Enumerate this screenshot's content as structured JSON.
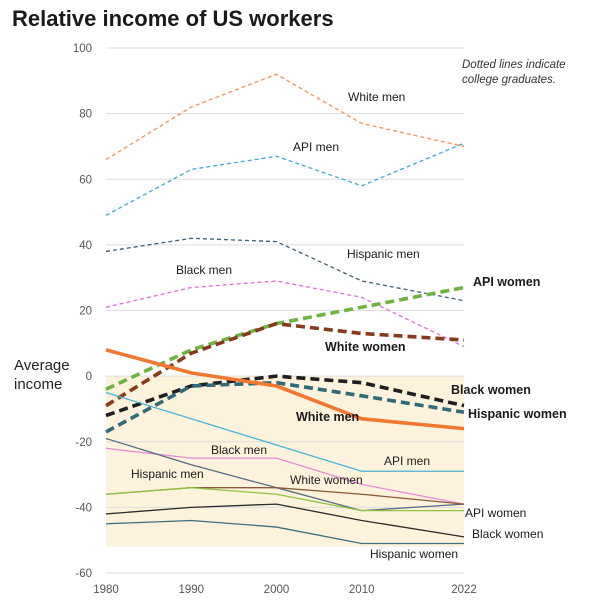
{
  "chart_data": {
    "type": "line",
    "title": "Relative income of US workers",
    "note": "Dotted lines indicate college graduates.",
    "ylabel": "Average income",
    "x": [
      1980,
      1990,
      2000,
      2010,
      2022
    ],
    "x_tick_labels": [
      "1980",
      "1990",
      "2000",
      "2010",
      "2022"
    ],
    "ylim": [
      -60,
      100
    ],
    "y_ticks": [
      -60,
      -40,
      -20,
      0,
      20,
      40,
      60,
      80,
      100
    ],
    "y_tick_labels": [
      "-60",
      "-40",
      "-20",
      "0",
      "20",
      "40",
      "60",
      "80",
      "100"
    ],
    "shaded_region": {
      "from": -52,
      "to": 0,
      "color": "#fdf3dc"
    },
    "series": [
      {
        "name": "White men",
        "group": "college",
        "values": [
          66,
          82,
          92,
          77,
          70
        ],
        "color": "#f0925a",
        "style": "dashed",
        "weight": "thin",
        "label_bold": false
      },
      {
        "name": "API men",
        "group": "college",
        "values": [
          49,
          63,
          67,
          58,
          71
        ],
        "color": "#3aa7d6",
        "style": "dashed",
        "weight": "thin",
        "label_bold": false
      },
      {
        "name": "Hispanic men",
        "group": "college",
        "values": [
          38,
          42,
          41,
          29,
          23
        ],
        "color": "#3d5f7a",
        "style": "dashed",
        "weight": "thin",
        "label_bold": false
      },
      {
        "name": "Black men",
        "group": "college",
        "values": [
          21,
          27,
          29,
          24,
          9
        ],
        "color": "#de6fdc",
        "style": "dashed",
        "weight": "thin",
        "label_bold": false
      },
      {
        "name": "API women",
        "group": "college",
        "values": [
          -4,
          8,
          16,
          21,
          27
        ],
        "color": "#6db33f",
        "style": "dashed",
        "weight": "thick",
        "label_bold": true
      },
      {
        "name": "White women",
        "group": "college",
        "values": [
          -9,
          7,
          16,
          13,
          11
        ],
        "color": "#8a3a1c",
        "style": "dashed",
        "weight": "thick",
        "label_bold": true
      },
      {
        "name": "Black women",
        "group": "college",
        "values": [
          -12,
          -3,
          0,
          -2,
          -9
        ],
        "color": "#1f1f1f",
        "style": "dashed",
        "weight": "thick",
        "label_bold": true
      },
      {
        "name": "Hispanic women",
        "group": "college",
        "values": [
          -17,
          -3,
          -2,
          -6,
          -11
        ],
        "color": "#2f6b78",
        "style": "dashed",
        "weight": "thick",
        "label_bold": true
      },
      {
        "name": "White men",
        "group": "non-college",
        "values": [
          8,
          1,
          -3,
          -13,
          -16
        ],
        "color": "#f07830",
        "style": "solid",
        "weight": "thick",
        "label_bold": true
      },
      {
        "name": "API men",
        "group": "non-college",
        "values": [
          -5,
          -13,
          -21,
          -29,
          -29
        ],
        "color": "#4bb0d6",
        "style": "solid",
        "weight": "thin",
        "label_bold": false
      },
      {
        "name": "Black men",
        "group": "non-college",
        "values": [
          -22,
          -25,
          -25,
          -33,
          -39
        ],
        "color": "#e889d4",
        "style": "solid",
        "weight": "thin",
        "label_bold": false
      },
      {
        "name": "White women",
        "group": "non-college",
        "values": [
          -19,
          -27,
          -34,
          -41,
          -39
        ],
        "color": "#596e84",
        "style": "solid",
        "weight": "thin",
        "label_bold": false
      },
      {
        "name": "Hispanic men",
        "group": "non-college",
        "values": [
          -36,
          -34,
          -34,
          -36,
          -39
        ],
        "color": "#8a5a3a",
        "style": "solid",
        "weight": "thin",
        "label_bold": false
      },
      {
        "name": "API women",
        "group": "non-college",
        "values": [
          -36,
          -34,
          -36,
          -41,
          -41
        ],
        "color": "#8fc441",
        "style": "solid",
        "weight": "thin",
        "label_bold": false
      },
      {
        "name": "Black women",
        "group": "non-college",
        "values": [
          -42,
          -40,
          -39,
          -44,
          -49
        ],
        "color": "#2a2a2a",
        "style": "solid",
        "weight": "thin",
        "label_bold": false
      },
      {
        "name": "Hispanic women",
        "group": "non-college",
        "values": [
          -45,
          -44,
          -46,
          -51,
          -51
        ],
        "color": "#3d7080",
        "style": "solid",
        "weight": "thin",
        "label_bold": false
      }
    ],
    "grid": true,
    "legend": "inline labels"
  }
}
